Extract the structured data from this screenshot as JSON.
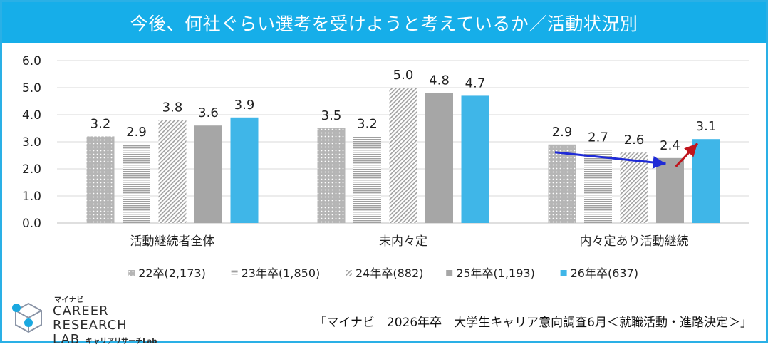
{
  "title": "今後、何社ぐらい選考を受けようと考えているか／活動状況別",
  "logo": {
    "small": "マイナビ",
    "line1": "CAREER RESEARCH",
    "line2": "LAB",
    "sub": "キャリアリサーチLab"
  },
  "source": "「マイナビ　2026年卒　大学生キャリア意向調査6月＜就職活動・進路決定＞」",
  "chart_data": {
    "type": "bar",
    "categories": [
      "活動継続者全体",
      "未内々定",
      "内々定あり活動継続"
    ],
    "series": [
      {
        "name": "22卒(2,173)",
        "values": [
          3.2,
          3.5,
          2.9
        ],
        "color": "#a6a6a6",
        "pattern": "dots"
      },
      {
        "name": "23年卒(1,850)",
        "values": [
          2.9,
          3.2,
          2.7
        ],
        "color": "#a6a6a6",
        "pattern": "hlines"
      },
      {
        "name": "24年卒(882)",
        "values": [
          3.8,
          5.0,
          2.6
        ],
        "color": "#a6a6a6",
        "pattern": "diag"
      },
      {
        "name": "25年卒(1,193)",
        "values": [
          3.6,
          4.8,
          2.4
        ],
        "color": "#a6a6a6",
        "pattern": "solid"
      },
      {
        "name": "26年卒(637)",
        "values": [
          3.9,
          4.7,
          3.1
        ],
        "color": "#3fb6e8",
        "pattern": "solid"
      }
    ],
    "data_labels": [
      [
        "3.2",
        "3.5",
        "2.9"
      ],
      [
        "2.9",
        "3.2",
        "2.7"
      ],
      [
        "3.8",
        "5.0",
        "2.6"
      ],
      [
        "3.6",
        "4.8",
        "2.4"
      ],
      [
        "3.9",
        "4.7",
        "3.1"
      ]
    ],
    "ylim": [
      0,
      6
    ],
    "yticks": [
      "0.0",
      "1.0",
      "2.0",
      "3.0",
      "4.0",
      "5.0",
      "6.0"
    ],
    "grid": true,
    "legend_position": "bottom",
    "annotations": [
      {
        "type": "arrow",
        "color": "#1f2bd6",
        "from": {
          "category": 2,
          "series": 0
        },
        "to": {
          "category": 2,
          "series": 3
        }
      },
      {
        "type": "arrow",
        "color": "#c0141c",
        "from": {
          "category": 2,
          "series": 3
        },
        "to": {
          "category": 2,
          "series": 4
        }
      }
    ]
  }
}
